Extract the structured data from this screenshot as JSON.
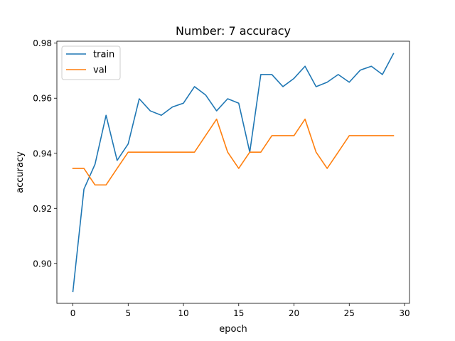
{
  "chart_data": {
    "type": "line",
    "title": "Number: 7 accuracy",
    "xlabel": "epoch",
    "ylabel": "accuracy",
    "xlim": [
      -1.45,
      30.45
    ],
    "ylim": [
      0.8855,
      0.9807
    ],
    "xticks": [
      0,
      5,
      10,
      15,
      20,
      25,
      30
    ],
    "xtick_labels": [
      "0",
      "5",
      "10",
      "15",
      "20",
      "25",
      "30"
    ],
    "yticks": [
      0.9,
      0.92,
      0.94,
      0.96,
      0.98
    ],
    "ytick_labels": [
      "0.90",
      "0.92",
      "0.94",
      "0.96",
      "0.98"
    ],
    "grid": false,
    "legend_position": "top-left",
    "x": [
      0,
      1,
      2,
      3,
      4,
      5,
      6,
      7,
      8,
      9,
      10,
      11,
      12,
      13,
      14,
      15,
      16,
      17,
      18,
      19,
      20,
      21,
      22,
      23,
      24,
      25,
      26,
      27,
      28,
      29
    ],
    "series": [
      {
        "name": "train",
        "color": "#1f77b4",
        "values": [
          0.8898,
          0.927,
          0.936,
          0.9538,
          0.9374,
          0.9434,
          0.9598,
          0.9554,
          0.9538,
          0.9568,
          0.9582,
          0.9642,
          0.9612,
          0.9554,
          0.9598,
          0.9582,
          0.9404,
          0.9686,
          0.9686,
          0.9642,
          0.9672,
          0.9716,
          0.9642,
          0.9658,
          0.9686,
          0.9658,
          0.9702,
          0.9716,
          0.9686,
          0.9762
        ]
      },
      {
        "name": "val",
        "color": "#ff7f0e",
        "values": [
          0.9345,
          0.9345,
          0.9285,
          0.9285,
          0.9345,
          0.9404,
          0.9404,
          0.9404,
          0.9404,
          0.9404,
          0.9404,
          0.9404,
          0.9464,
          0.9524,
          0.9404,
          0.9345,
          0.9404,
          0.9404,
          0.9464,
          0.9464,
          0.9464,
          0.9524,
          0.9404,
          0.9345,
          0.9404,
          0.9464,
          0.9464,
          0.9464,
          0.9464,
          0.9464
        ]
      }
    ]
  }
}
